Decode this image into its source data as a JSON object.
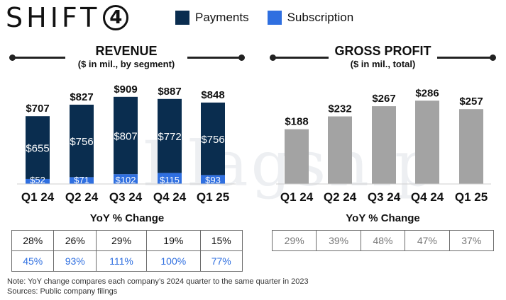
{
  "logo": {
    "text": "SHIFT",
    "digit": "4"
  },
  "legend": [
    {
      "label": "Payments",
      "color": "#0a2d4f"
    },
    {
      "label": "Subscription",
      "color": "#2f6fe0"
    }
  ],
  "colors": {
    "payments": "#0a2d4f",
    "subscription": "#2f6fe0",
    "gross_profit": "#a3a3a3",
    "subscription_text": "#2f6fe0"
  },
  "revenue": {
    "title": "REVENUE",
    "subtitle": "($ in mil., by segment)"
  },
  "gross_profit": {
    "title": "GROSS PROFIT",
    "subtitle": "($ in mil., total)"
  },
  "chart_data": [
    {
      "type": "bar",
      "title": "REVENUE",
      "subtitle": "($ in mil., by segment)",
      "stacked": true,
      "categories": [
        "Q1 24",
        "Q2 24",
        "Q3 24",
        "Q4 24",
        "Q1 25"
      ],
      "series": [
        {
          "name": "Payments",
          "values": [
            655,
            756,
            807,
            772,
            756
          ]
        },
        {
          "name": "Subscription",
          "values": [
            52,
            71,
            102,
            115,
            93
          ]
        }
      ],
      "totals": [
        "$707",
        "$827",
        "$909",
        "$887",
        "$848"
      ],
      "segment_labels": {
        "Payments": [
          "$655",
          "$756",
          "$807",
          "$772",
          "$756"
        ],
        "Subscription": [
          "$52",
          "$71",
          "$102",
          "$115",
          "$93"
        ]
      },
      "ylim": [
        0,
        1000
      ]
    },
    {
      "type": "bar",
      "title": "GROSS PROFIT",
      "subtitle": "($ in mil., total)",
      "categories": [
        "Q1 24",
        "Q2 24",
        "Q3 24",
        "Q4 24",
        "Q1 25"
      ],
      "values": [
        188,
        232,
        267,
        286,
        257
      ],
      "labels": [
        "$188",
        "$232",
        "$267",
        "$286",
        "$257"
      ],
      "ylim": [
        0,
        330
      ]
    }
  ],
  "yoy_revenue": {
    "title": "YoY % Change",
    "rows": [
      [
        "28%",
        "26%",
        "29%",
        "19%",
        "15%"
      ],
      [
        "45%",
        "93%",
        "111%",
        "100%",
        "77%"
      ]
    ]
  },
  "yoy_gross": {
    "title": "YoY % Change",
    "rows": [
      [
        "29%",
        "39%",
        "48%",
        "47%",
        "37%"
      ]
    ]
  },
  "notes": {
    "line1": "Note: YoY change compares each company’s 2024 quarter to the same quarter in 2023",
    "line2": "Sources: Public company filings"
  }
}
